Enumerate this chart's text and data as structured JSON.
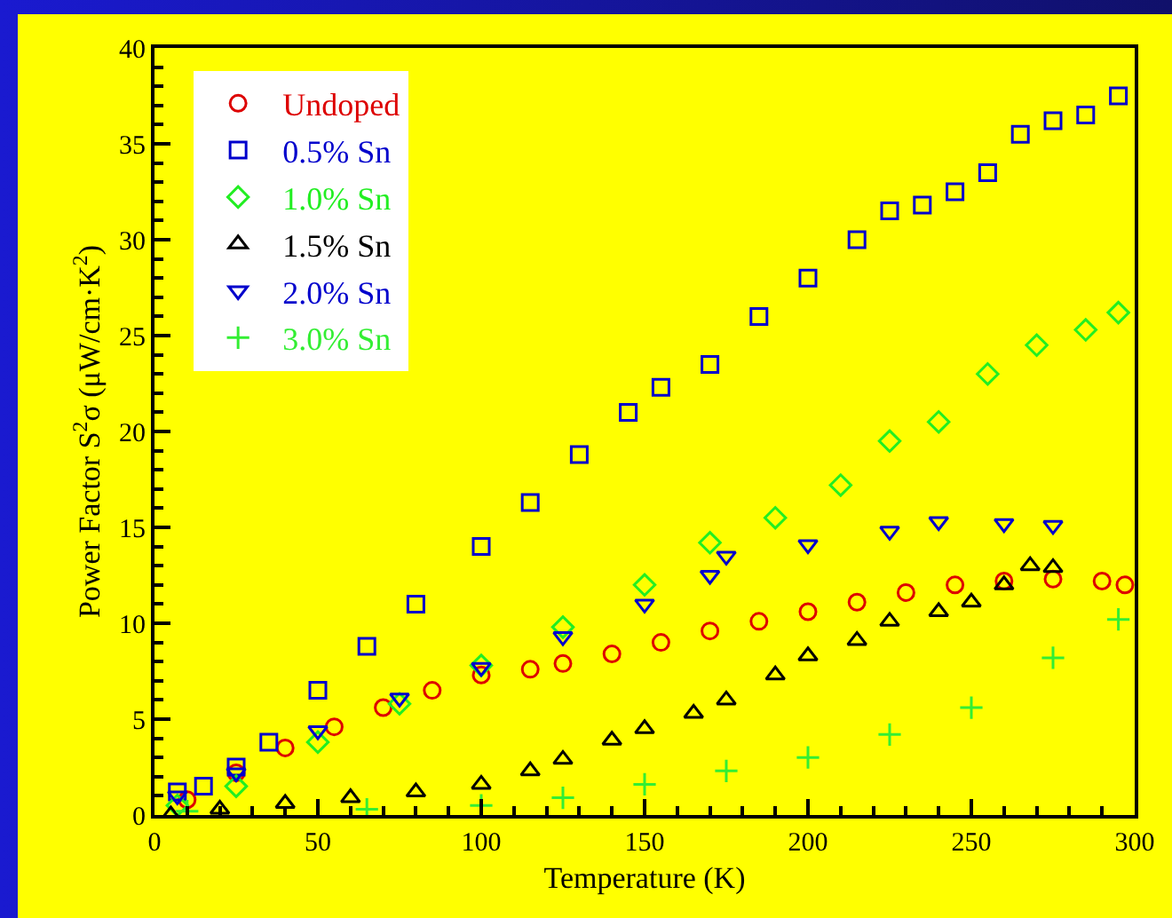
{
  "chart_data": {
    "type": "scatter",
    "xlabel": "Temperature (K)",
    "ylabel": "Power Factor S$^{2}$σ (μW/cm·K$^{2}$)",
    "xlim": [
      0,
      300
    ],
    "xticks": [
      0,
      50,
      100,
      150,
      200,
      250,
      300
    ],
    "ylim": [
      0,
      40
    ],
    "yticks": [
      0,
      5,
      10,
      15,
      20,
      25,
      30,
      35,
      40
    ],
    "grid": false,
    "legend": "top left",
    "series": [
      {
        "name": "Undoped",
        "color": "#dd0000",
        "marker": "circle",
        "x": [
          10,
          25,
          40,
          55,
          70,
          85,
          100,
          115,
          125,
          140,
          155,
          170,
          185,
          200,
          215,
          230,
          245,
          260,
          275,
          290,
          297
        ],
        "values": [
          0.8,
          2.2,
          3.5,
          4.6,
          5.6,
          6.5,
          7.3,
          7.6,
          7.9,
          8.4,
          9.0,
          9.6,
          10.1,
          10.6,
          11.1,
          11.6,
          12.0,
          12.2,
          12.3,
          12.2,
          12.0
        ]
      },
      {
        "name": "0.5% Sn",
        "color": "#0000cc",
        "marker": "square",
        "x": [
          7,
          15,
          25,
          35,
          50,
          65,
          80,
          100,
          115,
          130,
          145,
          155,
          170,
          185,
          200,
          215,
          225,
          235,
          245,
          255,
          265,
          275,
          285,
          295
        ],
        "values": [
          1.2,
          1.5,
          2.5,
          3.8,
          6.5,
          8.8,
          11,
          14,
          16.3,
          18.8,
          21,
          22.3,
          23.5,
          26,
          28,
          30,
          31.5,
          31.8,
          32.5,
          33.5,
          35.5,
          36.2,
          36.5,
          37.5
        ]
      },
      {
        "name": "1.0% Sn",
        "color": "#22ee22",
        "marker": "diamond",
        "x": [
          7,
          25,
          50,
          75,
          100,
          125,
          150,
          170,
          190,
          210,
          225,
          240,
          255,
          270,
          285,
          295
        ],
        "values": [
          0.5,
          1.5,
          3.8,
          5.8,
          7.8,
          9.8,
          12,
          14.2,
          15.5,
          17.2,
          19.5,
          20.5,
          23,
          24.5,
          25.3,
          26.2
        ]
      },
      {
        "name": "1.5% Sn",
        "color": "#000000",
        "marker": "triangle",
        "x": [
          5,
          20,
          40,
          60,
          80,
          100,
          115,
          125,
          140,
          150,
          165,
          175,
          190,
          200,
          215,
          225,
          240,
          250,
          260,
          268,
          275
        ],
        "values": [
          0,
          0.3,
          0.6,
          0.9,
          1.2,
          1.6,
          2.3,
          2.9,
          3.9,
          4.5,
          5.3,
          6.0,
          7.3,
          8.3,
          9.1,
          10.1,
          10.6,
          11.1,
          12.0,
          13.0,
          12.9
        ]
      },
      {
        "name": "2.0% Sn",
        "color": "#0000cc",
        "marker": "triangle-down",
        "x": [
          7,
          25,
          50,
          75,
          100,
          125,
          150,
          170,
          175,
          200,
          225,
          240,
          260,
          275
        ],
        "values": [
          1,
          2.2,
          4.4,
          6.1,
          7.7,
          9.3,
          11,
          12.5,
          13.5,
          14.1,
          14.8,
          15.3,
          15.2,
          15.1
        ]
      },
      {
        "name": "3.0% Sn",
        "color": "#33ee33",
        "marker": "cross",
        "x": [
          10,
          65,
          100,
          125,
          150,
          175,
          200,
          225,
          250,
          275,
          295
        ],
        "values": [
          0.2,
          0.3,
          0.5,
          0.9,
          1.6,
          2.3,
          3.0,
          4.2,
          5.6,
          8.2,
          10.2
        ]
      }
    ]
  }
}
